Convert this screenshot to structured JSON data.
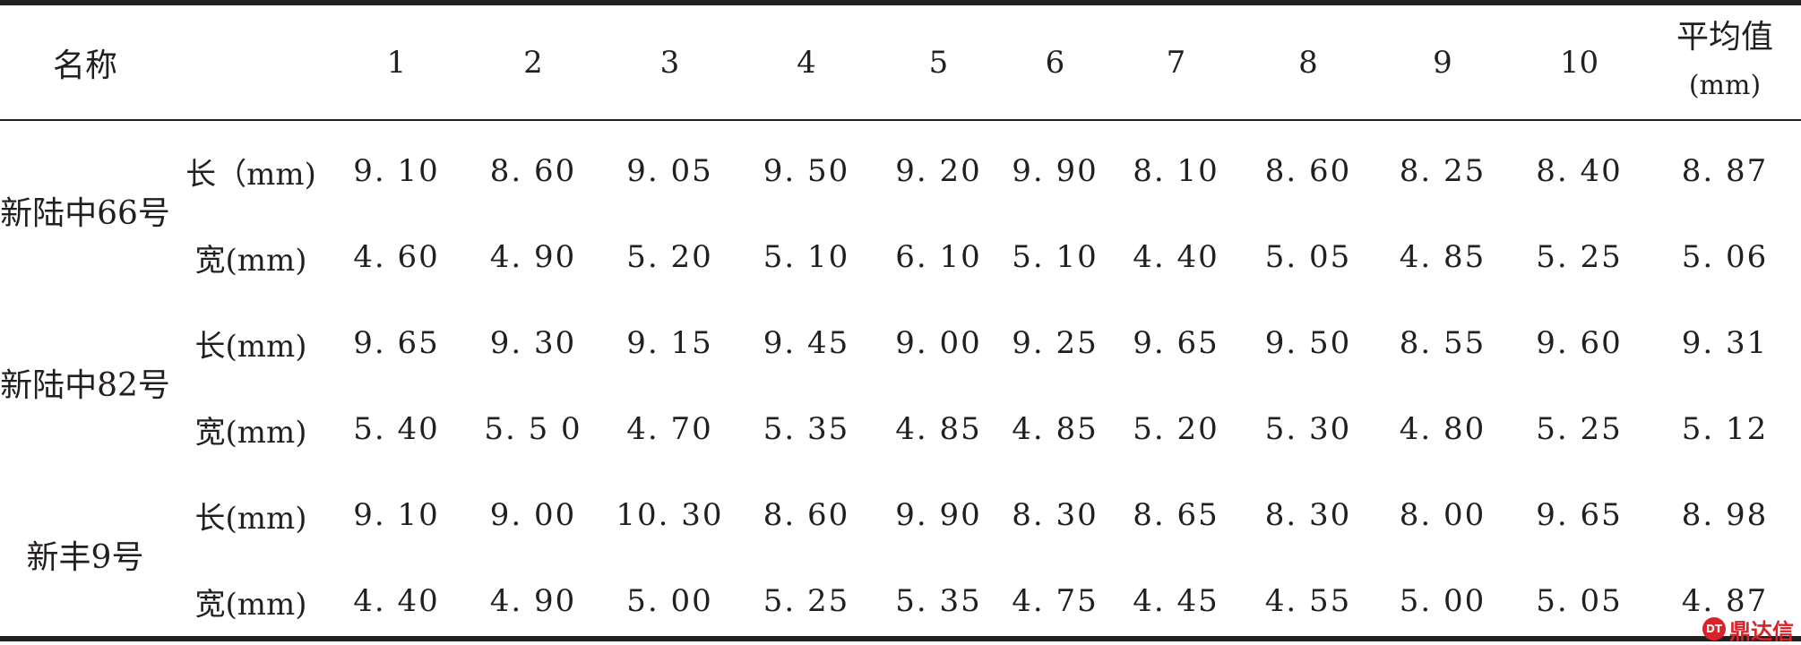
{
  "table": {
    "header": {
      "name_label": "名称",
      "columns": [
        "1",
        "2",
        "3",
        "4",
        "5",
        "6",
        "7",
        "8",
        "9",
        "10"
      ],
      "average_label": "平均值",
      "average_unit": "(mm)"
    },
    "varieties": [
      {
        "name": "新陆中66号",
        "rows": [
          {
            "dimension": "长（mm)",
            "values": [
              "9. 10",
              "8. 60",
              "9. 05",
              "9. 50",
              "9. 20",
              "9. 90",
              "8. 10",
              "8. 60",
              "8. 25",
              "8. 40"
            ],
            "average": "8. 87"
          },
          {
            "dimension": "宽(mm)",
            "values": [
              "4. 60",
              "4. 90",
              "5. 20",
              "5. 10",
              "6. 10",
              "5. 10",
              "4. 40",
              "5. 05",
              "4. 85",
              "5. 25"
            ],
            "average": "5. 06"
          }
        ]
      },
      {
        "name": "新陆中82号",
        "rows": [
          {
            "dimension": "长(mm)",
            "values": [
              "9. 65",
              "9. 30",
              "9. 15",
              "9. 45",
              "9. 00",
              "9. 25",
              "9. 65",
              "9. 50",
              "8. 55",
              "9. 60"
            ],
            "average": "9. 31"
          },
          {
            "dimension": "宽(mm)",
            "values": [
              "5. 40",
              "5. 5 0",
              "4. 70",
              "5. 35",
              "4. 85",
              "4. 85",
              "5. 20",
              "5. 30",
              "4. 80",
              "5. 25"
            ],
            "average": "5. 12"
          }
        ]
      },
      {
        "name": "新丰9号",
        "rows": [
          {
            "dimension": "长(mm)",
            "values": [
              "9. 10",
              "9. 00",
              "10. 30",
              "8. 60",
              "9. 90",
              "8. 30",
              "8. 65",
              "8. 30",
              "8. 00",
              "9. 65"
            ],
            "average": "8. 98"
          },
          {
            "dimension": "宽(mm)",
            "values": [
              "4. 40",
              "4. 90",
              "5. 00",
              "5. 25",
              "5. 35",
              "4. 75",
              "4. 45",
              "4. 55",
              "5. 00",
              "5. 05"
            ],
            "average": "4. 87"
          }
        ]
      }
    ]
  },
  "watermark": {
    "text": "鼎达信",
    "icon_text": "DT"
  }
}
